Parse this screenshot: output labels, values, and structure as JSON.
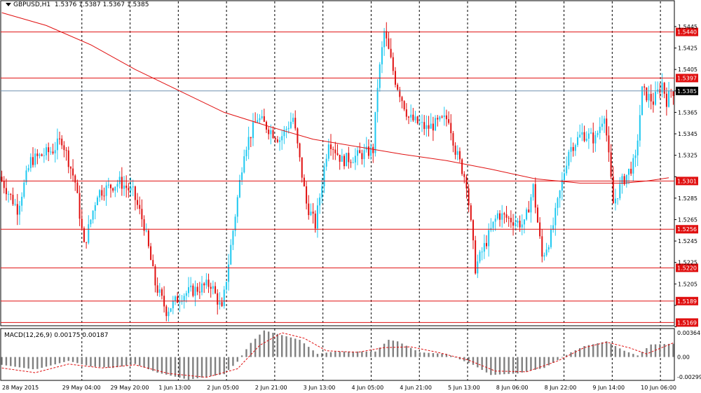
{
  "header": {
    "symbol": "GBPUSD,H1",
    "ohlc": "1.5376 1.5387 1.5367 1.5385"
  },
  "macd_header": {
    "text": "MACD(12,26,9) 0.00175 0.00187"
  },
  "colors": {
    "bull": "#1ec8f0",
    "bear": "#e01010",
    "ma": "#e01010",
    "level": "#e01010",
    "current_line": "#7090b0",
    "histogram": "#808080",
    "signal": "#e01010",
    "grid": "#000000"
  },
  "chart_data": [
    {
      "type": "candlestick",
      "title": "GBPUSD,H1",
      "ylim": [
        1.5166,
        1.546
      ],
      "y_ticks": [
        "1.5445",
        "1.5425",
        "1.5405",
        "1.5385",
        "1.5365",
        "1.5345",
        "1.5325",
        "1.5305",
        "1.5285",
        "1.5265",
        "1.5245",
        "1.5225",
        "1.5205",
        "1.5185",
        "1.5165"
      ],
      "x_ticks": [
        "28 May 2015",
        "29 May 04:00",
        "29 May 20:00",
        "1 Jun 13:00",
        "2 Jun 05:00",
        "2 Jun 21:00",
        "3 Jun 13:00",
        "4 Jun 05:00",
        "4 Jun 21:00",
        "5 Jun 13:00",
        "8 Jun 06:00",
        "8 Jun 22:00",
        "9 Jun 14:00",
        "10 Jun 06:00"
      ],
      "grid": "vertical dashed",
      "current_price": "1.5385",
      "levels": [
        "1.5440",
        "1.5397",
        "1.5301",
        "1.5256",
        "1.5220",
        "1.5189",
        "1.5169"
      ],
      "moving_average": [
        {
          "x": 0,
          "y": 1.5458
        },
        {
          "x": 20,
          "y": 1.5446
        },
        {
          "x": 40,
          "y": 1.5428
        },
        {
          "x": 60,
          "y": 1.5405
        },
        {
          "x": 80,
          "y": 1.5385
        },
        {
          "x": 100,
          "y": 1.5365
        },
        {
          "x": 120,
          "y": 1.5352
        },
        {
          "x": 140,
          "y": 1.534
        },
        {
          "x": 160,
          "y": 1.5333
        },
        {
          "x": 180,
          "y": 1.5326
        },
        {
          "x": 200,
          "y": 1.532
        },
        {
          "x": 220,
          "y": 1.5312
        },
        {
          "x": 240,
          "y": 1.5303
        },
        {
          "x": 260,
          "y": 1.5299
        },
        {
          "x": 280,
          "y": 1.5299
        },
        {
          "x": 290,
          "y": 1.5301
        },
        {
          "x": 300,
          "y": 1.5304
        }
      ],
      "anchors": [
        [
          0,
          1.5305
        ],
        [
          8,
          1.5275
        ],
        [
          14,
          1.532
        ],
        [
          24,
          1.533
        ],
        [
          28,
          1.534
        ],
        [
          34,
          1.53
        ],
        [
          38,
          1.524
        ],
        [
          44,
          1.529
        ],
        [
          54,
          1.53
        ],
        [
          60,
          1.529
        ],
        [
          65,
          1.526
        ],
        [
          70,
          1.5205
        ],
        [
          75,
          1.518
        ],
        [
          82,
          1.5195
        ],
        [
          95,
          1.5205
        ],
        [
          100,
          1.518
        ],
        [
          104,
          1.524
        ],
        [
          110,
          1.533
        ],
        [
          116,
          1.536
        ],
        [
          126,
          1.534
        ],
        [
          132,
          1.536
        ],
        [
          138,
          1.528
        ],
        [
          142,
          1.526
        ],
        [
          148,
          1.534
        ],
        [
          154,
          1.532
        ],
        [
          162,
          1.5325
        ],
        [
          168,
          1.533
        ],
        [
          170,
          1.539
        ],
        [
          173,
          1.544
        ],
        [
          178,
          1.5395
        ],
        [
          184,
          1.536
        ],
        [
          192,
          1.535
        ],
        [
          202,
          1.536
        ],
        [
          205,
          1.533
        ],
        [
          210,
          1.53
        ],
        [
          214,
          1.522
        ],
        [
          218,
          1.524
        ],
        [
          224,
          1.527
        ],
        [
          230,
          1.5265
        ],
        [
          236,
          1.526
        ],
        [
          240,
          1.5295
        ],
        [
          244,
          1.523
        ],
        [
          248,
          1.525
        ],
        [
          252,
          1.529
        ],
        [
          256,
          1.533
        ],
        [
          262,
          1.5345
        ],
        [
          268,
          1.534
        ],
        [
          272,
          1.5365
        ],
        [
          276,
          1.528
        ],
        [
          280,
          1.53
        ],
        [
          286,
          1.532
        ],
        [
          289,
          1.5385
        ],
        [
          294,
          1.5375
        ],
        [
          298,
          1.5392
        ],
        [
          300,
          1.5376
        ],
        [
          302,
          1.5385
        ]
      ]
    },
    {
      "type": "bar",
      "title": "MACD(12,26,9) 0.00175 0.00187",
      "ylim": [
        -0.00299,
        0.00364
      ],
      "y_ticks": [
        "0.00364",
        "0.00",
        "-0.00299"
      ],
      "histogram_anchors": [
        [
          0,
          -0.001
        ],
        [
          15,
          -0.0016
        ],
        [
          30,
          -0.0005
        ],
        [
          40,
          -0.0012
        ],
        [
          50,
          -0.0014
        ],
        [
          60,
          -0.0009
        ],
        [
          70,
          -0.002
        ],
        [
          84,
          -0.0029
        ],
        [
          100,
          -0.0022
        ],
        [
          106,
          -0.0006
        ],
        [
          112,
          0.0018
        ],
        [
          118,
          0.0034
        ],
        [
          126,
          0.0028
        ],
        [
          134,
          0.0022
        ],
        [
          142,
          0.0004
        ],
        [
          150,
          0.0007
        ],
        [
          168,
          0.0007
        ],
        [
          174,
          0.0022
        ],
        [
          178,
          0.002
        ],
        [
          188,
          0.0006
        ],
        [
          200,
          0.0004
        ],
        [
          212,
          -0.001
        ],
        [
          220,
          -0.0023
        ],
        [
          232,
          -0.0021
        ],
        [
          244,
          -0.0014
        ],
        [
          256,
          0.0006
        ],
        [
          262,
          0.0014
        ],
        [
          272,
          0.002
        ],
        [
          280,
          0.0008
        ],
        [
          286,
          0.0002
        ],
        [
          292,
          0.0016
        ],
        [
          302,
          0.0017
        ]
      ],
      "signal_anchors": [
        [
          0,
          -0.0014
        ],
        [
          15,
          -0.002
        ],
        [
          30,
          -0.0009
        ],
        [
          45,
          -0.0014
        ],
        [
          60,
          -0.001
        ],
        [
          75,
          -0.0021
        ],
        [
          92,
          -0.0026
        ],
        [
          106,
          -0.0015
        ],
        [
          116,
          0.0015
        ],
        [
          126,
          0.0031
        ],
        [
          136,
          0.0024
        ],
        [
          146,
          0.0008
        ],
        [
          160,
          0.0006
        ],
        [
          172,
          0.0012
        ],
        [
          184,
          0.0013
        ],
        [
          196,
          0.0006
        ],
        [
          210,
          -0.0004
        ],
        [
          222,
          -0.0018
        ],
        [
          236,
          -0.0019
        ],
        [
          250,
          -0.0005
        ],
        [
          262,
          0.0012
        ],
        [
          272,
          0.0019
        ],
        [
          282,
          0.0012
        ],
        [
          290,
          0.0004
        ],
        [
          302,
          0.0018
        ]
      ]
    }
  ]
}
